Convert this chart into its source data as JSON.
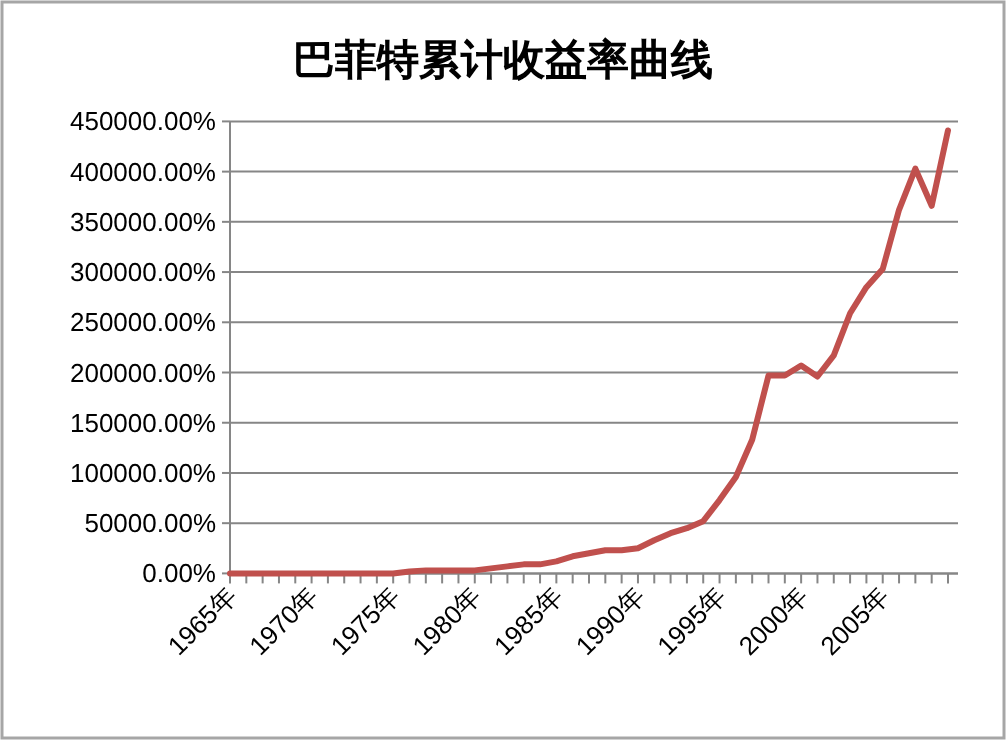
{
  "chart_data": {
    "type": "line",
    "title": "巴菲特累计收益率曲线",
    "categories": [
      "1965年",
      null,
      null,
      null,
      null,
      "1970年",
      null,
      null,
      null,
      null,
      "1975年",
      null,
      null,
      null,
      null,
      "1980年",
      null,
      null,
      null,
      null,
      "1985年",
      null,
      null,
      null,
      null,
      "1990年",
      null,
      null,
      null,
      null,
      "1995年",
      null,
      null,
      null,
      null,
      "2000年",
      null,
      null,
      null,
      null,
      "2005年",
      null,
      null,
      null,
      null
    ],
    "series": [
      {
        "color": "#c0504d",
        "values": [
          0,
          0,
          0,
          0,
          0,
          0,
          0,
          0,
          0,
          0,
          0,
          2000,
          3000,
          3000,
          3000,
          3000,
          5000,
          7000,
          9000,
          9000,
          12000,
          17000,
          20000,
          23000,
          23000,
          25000,
          33000,
          40000,
          45000,
          52000,
          73000,
          96000,
          133000,
          197000,
          197000,
          207000,
          196000,
          217000,
          259000,
          285000,
          303000,
          362000,
          403000,
          366000,
          441000
        ]
      }
    ],
    "ylim": [
      0,
      450000
    ],
    "yticks": [
      {
        "value": 0,
        "label": "0.00%"
      },
      {
        "value": 50000,
        "label": "50000.00%"
      },
      {
        "value": 100000,
        "label": "100000.00%"
      },
      {
        "value": 150000,
        "label": "150000.00%"
      },
      {
        "value": 200000,
        "label": "200000.00%"
      },
      {
        "value": 250000,
        "label": "250000.00%"
      },
      {
        "value": 300000,
        "label": "300000.00%"
      },
      {
        "value": 350000,
        "label": "350000.00%"
      },
      {
        "value": 400000,
        "label": "400000.00%"
      },
      {
        "value": 450000,
        "label": "450000.00%"
      }
    ],
    "grid": "y",
    "marker": "none",
    "line_style": "solid"
  }
}
